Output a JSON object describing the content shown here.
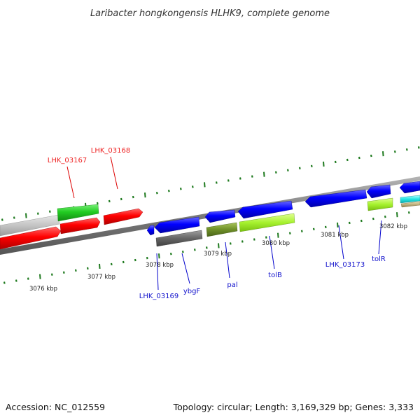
{
  "title": "Laribacter hongkongensis HLHK9, complete genome",
  "footer": {
    "accession": "Accession: NC_012559",
    "summary": "Topology: circular; Length: 3,169,329 bp; Genes: 3,333"
  },
  "ticks": [
    "3076 kbp",
    "3077 kbp",
    "3078 kbp",
    "3079 kbp",
    "3080 kbp",
    "3081 kbp",
    "3082 kbp"
  ],
  "genes": [
    {
      "name": "LHK_03167",
      "color": "#ee2222"
    },
    {
      "name": "LHK_03168",
      "color": "#ee2222"
    },
    {
      "name": "LHK_03169",
      "color": "#1111cc"
    },
    {
      "name": "ybgF",
      "color": "#1111cc"
    },
    {
      "name": "pal",
      "color": "#1111cc"
    },
    {
      "name": "tolB",
      "color": "#1111cc"
    },
    {
      "name": "LHK_03173",
      "color": "#1111cc"
    },
    {
      "name": "tolR",
      "color": "#1111cc"
    }
  ],
  "colors": {
    "backbone": "#8a8a8a",
    "tick": "#1f7a1f",
    "forward_cds": "#ee0000",
    "reverse_cds": "#0000ee"
  }
}
